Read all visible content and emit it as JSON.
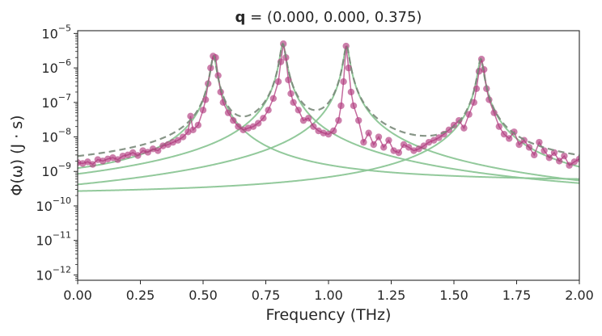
{
  "chart_data": {
    "type": "line",
    "title": "q = (0.000, 0.000, 0.375)",
    "title_bold_part": "q",
    "title_rest": " = (0.000, 0.000, 0.375)",
    "xlabel": "Frequency (THz)",
    "ylabel": "Φ(ω) (J · s)",
    "xlim": [
      0.0,
      2.0
    ],
    "ylim": [
      7e-13,
      1.2e-05
    ],
    "y_scale": "log",
    "x_ticks": [
      0.0,
      0.25,
      0.5,
      0.75,
      1.0,
      1.25,
      1.5,
      1.75,
      2.0
    ],
    "x_tick_labels": [
      "0.00",
      "0.25",
      "0.50",
      "0.75",
      "1.00",
      "1.25",
      "1.50",
      "1.75",
      "2.00"
    ],
    "y_tick_exponents": [
      -12,
      -11,
      -10,
      -9,
      -8,
      -7,
      -6,
      -5
    ],
    "y_tick_base": "10",
    "grid": false,
    "legend": "none",
    "colors": {
      "data": "#b03a7e",
      "fit": "#7a8a7a",
      "modes": "#8cc696"
    },
    "peaks": [
      {
        "x0": 0.542,
        "amplitude": 2.2e-06,
        "gamma": 0.01,
        "background": 5e-10
      },
      {
        "x0": 0.818,
        "amplitude": 5e-06,
        "gamma": 0.01,
        "background": 1e-10
      },
      {
        "x0": 1.072,
        "amplitude": 4.3e-06,
        "gamma": 0.01,
        "background": 4.5e-11
      },
      {
        "x0": 1.607,
        "amplitude": 1.8e-06,
        "gamma": 0.01,
        "background": 2e-10
      }
    ],
    "series": [
      {
        "kind": "data",
        "x": [
          0.0,
          0.02,
          0.04,
          0.06,
          0.08,
          0.1,
          0.12,
          0.14,
          0.16,
          0.18,
          0.2,
          0.22,
          0.24,
          0.26,
          0.28,
          0.3,
          0.32,
          0.34,
          0.36,
          0.38,
          0.4,
          0.42,
          0.44,
          0.45,
          0.46,
          0.48,
          0.5,
          0.51,
          0.52,
          0.53,
          0.54,
          0.55,
          0.56,
          0.57,
          0.58,
          0.6,
          0.62,
          0.64,
          0.66,
          0.68,
          0.7,
          0.72,
          0.74,
          0.76,
          0.78,
          0.8,
          0.81,
          0.82,
          0.83,
          0.84,
          0.85,
          0.86,
          0.88,
          0.9,
          0.92,
          0.94,
          0.96,
          0.98,
          1.0,
          1.02,
          1.04,
          1.05,
          1.06,
          1.07,
          1.08,
          1.09,
          1.1,
          1.12,
          1.14,
          1.16,
          1.18,
          1.2,
          1.22,
          1.24,
          1.26,
          1.28,
          1.3,
          1.32,
          1.34,
          1.36,
          1.38,
          1.4,
          1.42,
          1.44,
          1.46,
          1.48,
          1.5,
          1.52,
          1.54,
          1.56,
          1.58,
          1.59,
          1.6,
          1.61,
          1.62,
          1.63,
          1.64,
          1.66,
          1.68,
          1.7,
          1.72,
          1.74,
          1.76,
          1.78,
          1.8,
          1.82,
          1.84,
          1.86,
          1.88,
          1.9,
          1.92,
          1.94,
          1.96,
          1.98,
          2.0
        ],
        "y": [
          1.8e-09,
          1.7e-09,
          1.9e-09,
          1.6e-09,
          2.2e-09,
          2e-09,
          2.3e-09,
          2.5e-09,
          2.2e-09,
          2.8e-09,
          3e-09,
          3.5e-09,
          2.9e-09,
          4e-09,
          3.6e-09,
          4.5e-09,
          4e-09,
          5.5e-09,
          6e-09,
          7e-09,
          8e-09,
          1e-08,
          1.4e-08,
          4e-08,
          1.6e-08,
          2.2e-08,
          6e-08,
          1.2e-07,
          3.5e-07,
          1e-06,
          2.2e-06,
          2e-06,
          6e-07,
          2e-07,
          1e-07,
          5e-08,
          3e-08,
          2e-08,
          1.6e-08,
          1.8e-08,
          2e-08,
          2.5e-08,
          3.5e-08,
          6e-08,
          1.3e-07,
          4e-07,
          1.5e-06,
          5e-06,
          2e-06,
          4.5e-07,
          1.8e-07,
          1e-07,
          6e-08,
          3e-08,
          3.5e-08,
          2e-08,
          1.5e-08,
          1.3e-08,
          1.2e-08,
          1.5e-08,
          3e-08,
          8e-08,
          4e-07,
          4.3e-06,
          1e-06,
          2e-07,
          8e-08,
          3e-08,
          7e-09,
          1.3e-08,
          6e-09,
          1e-08,
          5e-09,
          8e-09,
          4e-09,
          3.5e-09,
          6e-09,
          5e-09,
          4e-09,
          4.5e-09,
          5.5e-09,
          7e-09,
          8e-09,
          9.5e-09,
          1.2e-08,
          1.6e-08,
          2.2e-08,
          3e-08,
          1.8e-08,
          4.5e-08,
          1e-07,
          2.5e-07,
          8e-07,
          1.8e-06,
          9e-07,
          2.5e-07,
          1.2e-07,
          5e-08,
          2e-08,
          1.2e-08,
          9e-09,
          1.4e-08,
          6e-09,
          8e-09,
          5e-09,
          3e-09,
          7e-09,
          4e-09,
          2.5e-09,
          3.5e-09,
          2e-09,
          2.8e-09,
          1.5e-09,
          1.9e-09,
          2.3e-09
        ]
      }
    ]
  }
}
